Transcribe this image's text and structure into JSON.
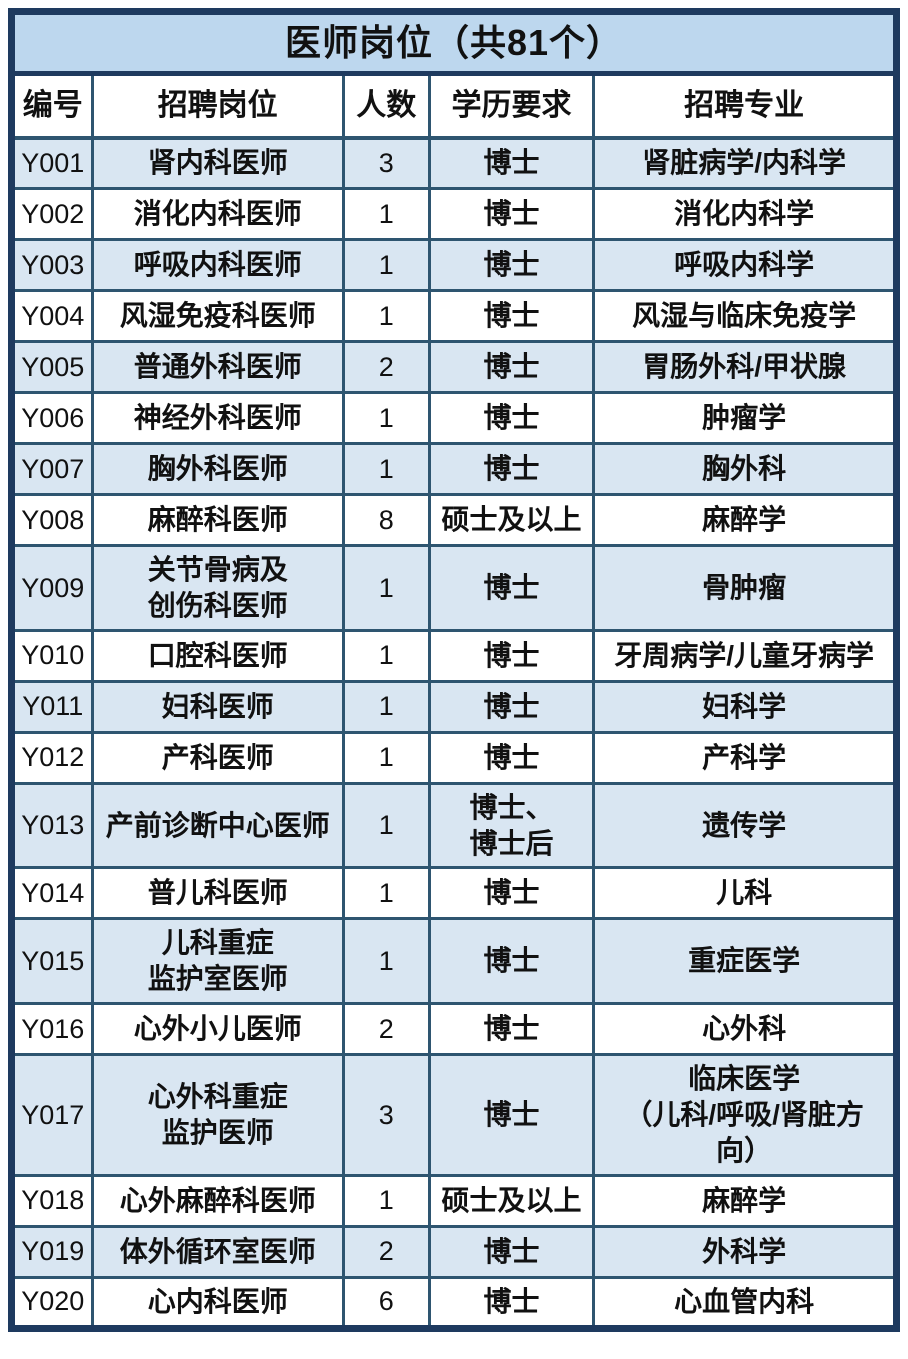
{
  "table": {
    "title": "医师岗位（共81个）",
    "columns": [
      {
        "key": "code",
        "label": "编号"
      },
      {
        "key": "position",
        "label": "招聘岗位"
      },
      {
        "key": "count",
        "label": "人数"
      },
      {
        "key": "education",
        "label": "学历要求"
      },
      {
        "key": "major",
        "label": "招聘专业"
      }
    ],
    "rows": [
      {
        "code": "Y001",
        "position": "肾内科医师",
        "count": "3",
        "education": "博士",
        "major": "肾脏病学/内科学"
      },
      {
        "code": "Y002",
        "position": "消化内科医师",
        "count": "1",
        "education": "博士",
        "major": "消化内科学"
      },
      {
        "code": "Y003",
        "position": "呼吸内科医师",
        "count": "1",
        "education": "博士",
        "major": "呼吸内科学"
      },
      {
        "code": "Y004",
        "position": "风湿免疫科医师",
        "count": "1",
        "education": "博士",
        "major": "风湿与临床免疫学"
      },
      {
        "code": "Y005",
        "position": "普通外科医师",
        "count": "2",
        "education": "博士",
        "major": "胃肠外科/甲状腺"
      },
      {
        "code": "Y006",
        "position": "神经外科医师",
        "count": "1",
        "education": "博士",
        "major": "肿瘤学"
      },
      {
        "code": "Y007",
        "position": "胸外科医师",
        "count": "1",
        "education": "博士",
        "major": "胸外科"
      },
      {
        "code": "Y008",
        "position": "麻醉科医师",
        "count": "8",
        "education": "硕士及以上",
        "major": "麻醉学"
      },
      {
        "code": "Y009",
        "position": "关节骨病及\n创伤科医师",
        "count": "1",
        "education": "博士",
        "major": "骨肿瘤"
      },
      {
        "code": "Y010",
        "position": "口腔科医师",
        "count": "1",
        "education": "博士",
        "major": "牙周病学/儿童牙病学"
      },
      {
        "code": "Y011",
        "position": "妇科医师",
        "count": "1",
        "education": "博士",
        "major": "妇科学"
      },
      {
        "code": "Y012",
        "position": "产科医师",
        "count": "1",
        "education": "博士",
        "major": "产科学"
      },
      {
        "code": "Y013",
        "position": "产前诊断中心医师",
        "count": "1",
        "education": "博士、\n博士后",
        "major": "遗传学"
      },
      {
        "code": "Y014",
        "position": "普儿科医师",
        "count": "1",
        "education": "博士",
        "major": "儿科"
      },
      {
        "code": "Y015",
        "position": "儿科重症\n监护室医师",
        "count": "1",
        "education": "博士",
        "major": "重症医学"
      },
      {
        "code": "Y016",
        "position": "心外小儿医师",
        "count": "2",
        "education": "博士",
        "major": "心外科"
      },
      {
        "code": "Y017",
        "position": "心外科重症\n监护医师",
        "count": "3",
        "education": "博士",
        "major": "临床医学\n（儿科/呼吸/肾脏方\n向）"
      },
      {
        "code": "Y018",
        "position": "心外麻醉科医师",
        "count": "1",
        "education": "硕士及以上",
        "major": "麻醉学"
      },
      {
        "code": "Y019",
        "position": "体外循环室医师",
        "count": "2",
        "education": "博士",
        "major": "外科学"
      },
      {
        "code": "Y020",
        "position": "心内科医师",
        "count": "6",
        "education": "博士",
        "major": "心血管内科"
      }
    ]
  },
  "colors": {
    "outer_border": "#1e3a5f",
    "grid_line": "#2e5570",
    "title_bg": "#bdd7ee",
    "alt_row_bg": "#d9e6f2",
    "text": "#111111"
  }
}
